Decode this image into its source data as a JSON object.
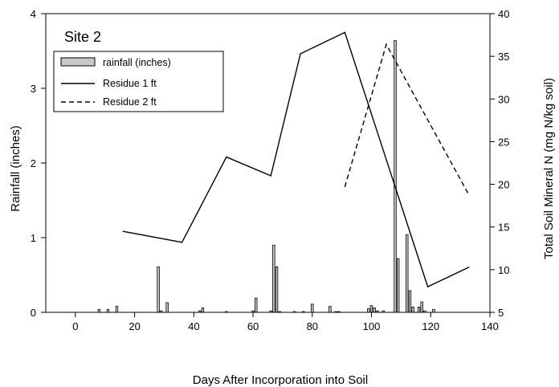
{
  "chart_data": {
    "type": "bar+line",
    "panel_label": "Site 2",
    "xlabel": "Days After Incorporation into Soil",
    "ylabel_left": "Rainfall (inches)",
    "ylabel_right": "Total Soil Mineral N (mg N/kg soil)",
    "xlim": [
      -10,
      140
    ],
    "x_ticks": [
      0,
      20,
      40,
      60,
      80,
      100,
      120,
      140
    ],
    "ylim_left": [
      0,
      4
    ],
    "y_left_ticks": [
      0,
      1,
      2,
      3,
      4
    ],
    "ylim_right": [
      5,
      40
    ],
    "y_right_ticks": [
      5,
      10,
      15,
      20,
      25,
      30,
      35,
      40
    ],
    "grid": false,
    "legend_position": "top-left",
    "colors": {
      "bar_fill": "#c8c8c8",
      "stroke": "#000000"
    },
    "rainfall": {
      "name": "rainfall (inches)",
      "axis": "left",
      "x": [
        8,
        11,
        14,
        28,
        29,
        31,
        42,
        43,
        51,
        60,
        61,
        66,
        67,
        68,
        69,
        74,
        77,
        80,
        86,
        88,
        89,
        99,
        100,
        101,
        102,
        104,
        108,
        109,
        112,
        113,
        114,
        116,
        117,
        118,
        121
      ],
      "values": [
        0.04,
        0.04,
        0.08,
        0.61,
        0.02,
        0.13,
        0.02,
        0.06,
        0.01,
        0.02,
        0.19,
        0.02,
        0.9,
        0.61,
        0.01,
        0.01,
        0.01,
        0.11,
        0.08,
        0.01,
        0.01,
        0.05,
        0.09,
        0.06,
        0.02,
        0.02,
        3.64,
        0.72,
        1.04,
        0.29,
        0.07,
        0.07,
        0.14,
        0.02,
        0.04
      ]
    },
    "series": [
      {
        "name": "Residue 1 ft",
        "style": "solid",
        "axis": "right",
        "x": [
          16,
          36,
          51,
          66,
          76,
          91,
          119,
          133
        ],
        "values": [
          14.5,
          13.2,
          23.2,
          21.0,
          35.3,
          37.8,
          8.0,
          10.3
        ]
      },
      {
        "name": "Residue 2 ft",
        "style": "dashed",
        "axis": "right",
        "x": [
          91,
          105,
          133
        ],
        "values": [
          19.7,
          36.4,
          18.7
        ]
      }
    ]
  }
}
